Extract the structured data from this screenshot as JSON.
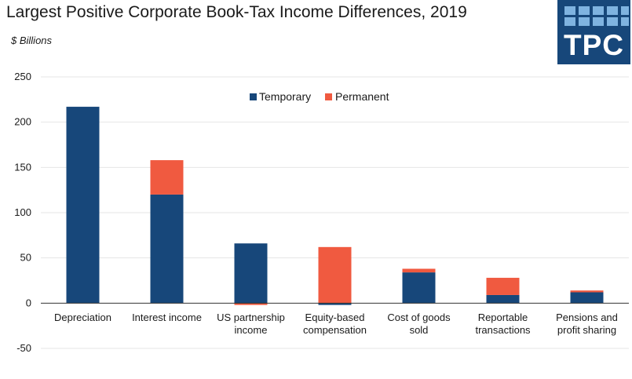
{
  "header": {
    "title": "Largest Positive Corporate Book-Tax Income Differences, 2019",
    "unit_label": "$ Billions"
  },
  "logo": {
    "text": "TPC"
  },
  "colors": {
    "temporary": "#17477a",
    "permanent": "#f05a40",
    "grid": "#e6e6e6",
    "axis": "#333333"
  },
  "chart_data": {
    "type": "bar",
    "stacked": true,
    "title": "Largest Positive Corporate Book-Tax Income Differences, 2019",
    "ylabel": "$ Billions",
    "ylim": [
      -50,
      250
    ],
    "yticks": [
      250,
      200,
      150,
      100,
      50,
      0,
      -50
    ],
    "categories": [
      [
        "Depreciation"
      ],
      [
        "Interest income"
      ],
      [
        "US partnership",
        "income"
      ],
      [
        "Equity-based",
        "compensation"
      ],
      [
        "Cost of goods",
        "sold"
      ],
      [
        "Reportable",
        "transactions"
      ],
      [
        "Pensions and",
        "profit sharing"
      ]
    ],
    "series": [
      {
        "name": "Temporary",
        "values": [
          217,
          120,
          66,
          -2,
          34,
          9,
          12
        ]
      },
      {
        "name": "Permanent",
        "values": [
          0,
          38,
          -2,
          62,
          4,
          19,
          2
        ]
      }
    ],
    "legend": "top-center"
  }
}
